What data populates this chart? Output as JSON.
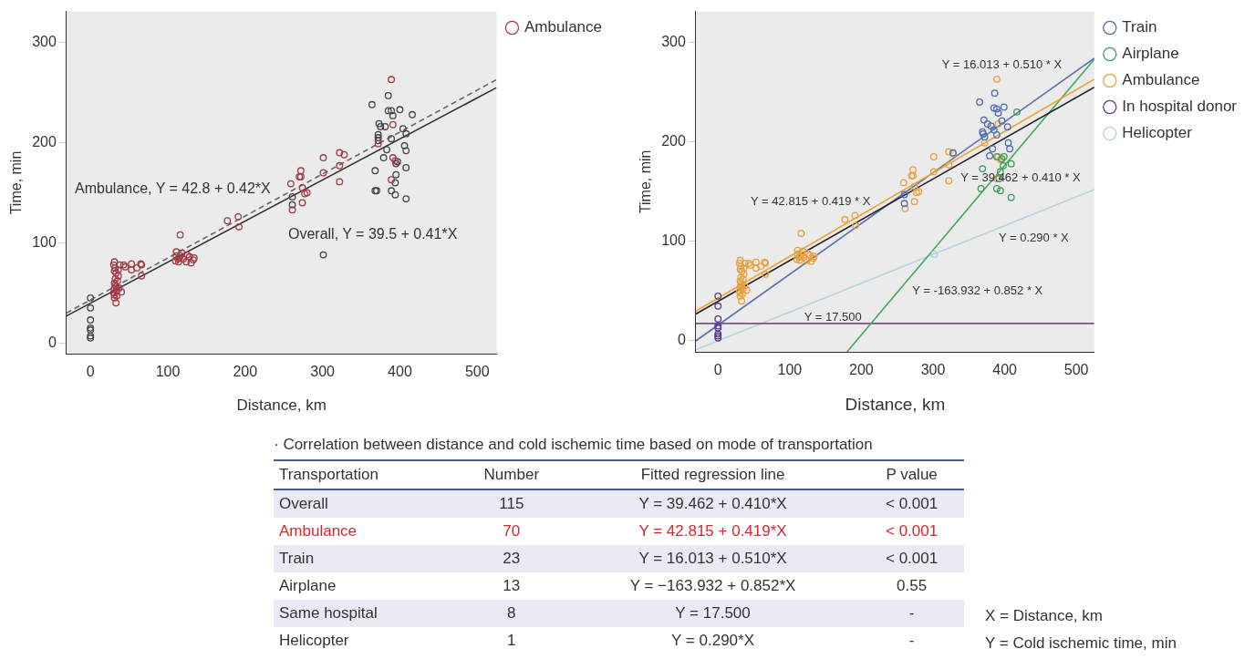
{
  "chart_data": [
    {
      "type": "scatter",
      "xlabel": "Distance, km",
      "ylabel": "Time, min",
      "xlim": [
        -31,
        525
      ],
      "ylim": [
        -11,
        331
      ],
      "xticks": [
        0,
        100,
        200,
        300,
        400,
        500
      ],
      "yticks": [
        0,
        100,
        200,
        300
      ],
      "grid": false,
      "legend": "top right",
      "marker": "circle",
      "annotations": [
        "Ambulance, Y = 42.8 + 0.42*X",
        "Overall, Y = 39.5 + 0.41*X"
      ],
      "series": [
        {
          "name": "Ambulance",
          "color": "#a33a45",
          "x": [
            389,
            391,
            372,
            391,
            394,
            389,
            259,
            261,
            272,
            272,
            270,
            274,
            277,
            274,
            301,
            301,
            322,
            328,
            322,
            322,
            177,
            191,
            192,
            116,
            111,
            116,
            114,
            124,
            134,
            133,
            111,
            31,
            32,
            38,
            43,
            53,
            65,
            66,
            53,
            66,
            32,
            36,
            32,
            31,
            34,
            40,
            31,
            31,
            33,
            31,
            33,
            35,
            30,
            34,
            37,
            33,
            31,
            36,
            30,
            45,
            60,
            113,
            120,
            125,
            130,
            118,
            110,
            115,
            128,
            280
          ],
          "values": [
            263,
            218,
            199,
            185,
            182,
            163,
            159,
            133,
            172,
            166,
            166,
            155,
            149,
            140,
            185,
            170,
            190,
            188,
            177,
            161,
            122,
            126,
            116,
            108,
            91,
            87,
            81,
            81,
            85,
            83,
            87,
            81,
            75,
            78,
            78,
            79,
            79,
            78,
            73,
            67,
            64,
            67,
            58,
            54,
            52,
            51,
            48,
            45,
            40,
            60,
            56,
            62,
            50,
            47,
            55,
            70,
            72,
            73,
            78,
            76,
            75,
            84,
            84,
            88,
            80,
            90,
            82,
            85,
            86,
            150
          ]
        },
        {
          "color": "#444444",
          "x": [
            0,
            0,
            0,
            0,
            0,
            0,
            0,
            364,
            385,
            385,
            389,
            400,
            391,
            416,
            373,
            375,
            381,
            372,
            372,
            372,
            404,
            408,
            389,
            406,
            408,
            383,
            379,
            397,
            395,
            408,
            368,
            395,
            394,
            368,
            370,
            389,
            394,
            408,
            301,
            261,
            261
          ],
          "values": [
            45,
            35,
            23,
            15,
            13,
            7,
            5,
            238,
            247,
            232,
            232,
            233,
            227,
            228,
            219,
            216,
            216,
            208,
            205,
            202,
            214,
            209,
            204,
            197,
            192,
            193,
            185,
            181,
            179,
            175,
            172,
            168,
            160,
            152,
            152,
            152,
            148,
            144,
            88,
            146,
            138
          ]
        },
        {
          "type": "line",
          "marker": "none",
          "line_style": "dashed",
          "color": "#666666",
          "x": [
            -31,
            525
          ],
          "values": [
            30,
            263
          ]
        },
        {
          "type": "line",
          "marker": "none",
          "line_style": "solid",
          "color": "#333333",
          "x": [
            -31,
            525
          ],
          "values": [
            27,
            255
          ]
        }
      ]
    },
    {
      "type": "scatter",
      "xlabel": "Distance, km",
      "ylabel": "Time, min",
      "xlim": [
        -31,
        525
      ],
      "ylim": [
        -11,
        331
      ],
      "xticks": [
        0,
        100,
        200,
        300,
        400,
        500
      ],
      "yticks": [
        0,
        100,
        200,
        300
      ],
      "grid": false,
      "legend": "top right",
      "marker": "circle",
      "annotations": [
        "Y = 16.013 + 0.510 * X",
        "Y = 39.462 + 0.410 * X",
        "Y = 42.815 + 0.419 * X",
        "Y = 0.290 * X",
        "Y = -163.932 + 0.852 * X",
        "Y = 17.500"
      ],
      "series": [
        {
          "name": "Train",
          "color": "#4a6bb5",
          "x": [
            365,
            386,
            385,
            389,
            399,
            391,
            371,
            376,
            381,
            370,
            372,
            405,
            407,
            383,
            379,
            389,
            328,
            260,
            260,
            404,
            385,
            396,
            369
          ],
          "values": [
            240,
            249,
            234,
            233,
            235,
            229,
            222,
            218,
            216,
            208,
            205,
            199,
            193,
            193,
            186,
            207,
            189,
            147,
            138,
            215,
            212,
            221,
            210
          ]
        },
        {
          "name": "Airplane",
          "color": "#3a9e5a",
          "x": [
            417,
            369,
            367,
            389,
            396,
            399,
            394,
            392,
            409,
            389,
            394,
            409,
            398
          ],
          "values": [
            230,
            173,
            153,
            185,
            183,
            185,
            170,
            163,
            178,
            153,
            151,
            144,
            176
          ]
        },
        {
          "name": "Ambulance",
          "color": "#e8a040",
          "x": [
            389,
            391,
            372,
            391,
            394,
            389,
            259,
            261,
            272,
            272,
            270,
            274,
            277,
            274,
            301,
            301,
            322,
            328,
            322,
            322,
            177,
            191,
            192,
            116,
            111,
            116,
            114,
            124,
            134,
            133,
            111,
            31,
            32,
            38,
            43,
            53,
            65,
            66,
            53,
            66,
            32,
            36,
            32,
            31,
            34,
            40,
            31,
            31,
            33,
            31,
            33,
            35,
            30,
            34,
            37,
            33,
            31,
            36,
            30,
            45,
            60,
            113,
            120,
            125,
            130,
            118,
            110,
            115,
            128,
            280
          ],
          "values": [
            263,
            218,
            199,
            185,
            182,
            163,
            159,
            133,
            172,
            166,
            166,
            155,
            149,
            140,
            185,
            170,
            190,
            188,
            177,
            161,
            122,
            126,
            116,
            108,
            91,
            87,
            81,
            81,
            85,
            83,
            87,
            81,
            75,
            78,
            78,
            79,
            79,
            78,
            73,
            67,
            64,
            67,
            58,
            54,
            52,
            51,
            48,
            45,
            40,
            60,
            56,
            62,
            50,
            47,
            55,
            70,
            72,
            73,
            78,
            76,
            75,
            84,
            84,
            88,
            80,
            90,
            82,
            85,
            86,
            150
          ]
        },
        {
          "name": "In hospital donor",
          "color": "#5a3a8a",
          "x": [
            0,
            0,
            0,
            0,
            0,
            0,
            0,
            0
          ],
          "values": [
            45,
            35,
            22,
            15,
            13,
            7,
            5,
            3
          ]
        },
        {
          "name": "Helicopter",
          "color": "#b0d0e0",
          "x": [
            302
          ],
          "values": [
            87
          ]
        },
        {
          "type": "line",
          "marker": "none",
          "line_style": "solid",
          "color": "#222222",
          "x": [
            -31,
            525
          ],
          "values": [
            27,
            255
          ]
        },
        {
          "type": "line",
          "marker": "none",
          "line_style": "solid",
          "color": "#f0a030",
          "x": [
            -31,
            525
          ],
          "values": [
            30,
            263
          ]
        },
        {
          "type": "line",
          "marker": "none",
          "line_style": "solid",
          "color": "#5a6fb0",
          "x": [
            -31,
            525
          ],
          "values": [
            0,
            284
          ]
        },
        {
          "type": "line",
          "marker": "none",
          "line_style": "solid",
          "color": "#3faa5a",
          "x": [
            180,
            525
          ],
          "values": [
            -11,
            283
          ]
        },
        {
          "type": "line",
          "marker": "none",
          "line_style": "solid",
          "color": "#8a4a8a",
          "x": [
            -31,
            525
          ],
          "values": [
            17.5,
            17.5
          ]
        },
        {
          "type": "line",
          "marker": "none",
          "line_style": "solid",
          "color": "#b8d4e0",
          "x": [
            -31,
            525
          ],
          "values": [
            -9,
            152
          ]
        }
      ]
    },
    {
      "type": "other",
      "title": "· Correlation between distance and cold ischemic time based on mode of transportation",
      "categories": [
        "Transportation",
        "Number",
        "Fitted regression line",
        "P value"
      ],
      "annotations": [
        "Overall",
        "115",
        "Y = 39.462 + 0.410*X",
        "< 0.001",
        "Ambulance",
        "70",
        "Y = 42.815 + 0.419*X",
        "< 0.001",
        "Train",
        "23",
        "Y = 16.013 + 0.510*X",
        "< 0.001",
        "Airplane",
        "13",
        "Y = −163.932 + 0.852*X",
        "0.55",
        "Same hospital",
        "8",
        "Y = 17.500",
        "-",
        "Helicopter",
        "1",
        "Y = 0.290*X",
        "-"
      ],
      "colors": [
        "#333333",
        "#d9262f",
        "#333333",
        "#333333",
        "#333333",
        "#333333"
      ],
      "xlabel": "X = Distance, km",
      "ylabel": "Y = Cold ischemic time, min"
    }
  ]
}
